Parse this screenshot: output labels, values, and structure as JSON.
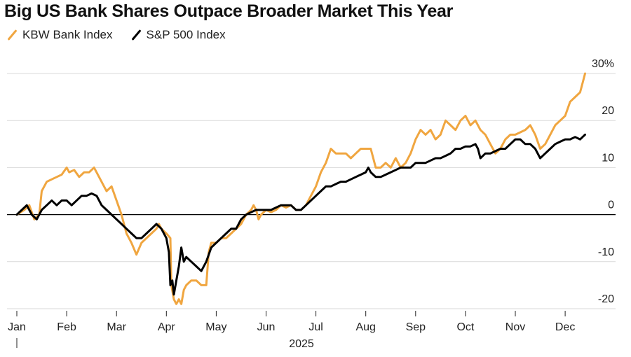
{
  "colors": {
    "kbw": "#f0a640",
    "sp500": "#000000",
    "grid": "#d9d9d9",
    "zero": "#000000"
  },
  "chart_data": {
    "type": "line",
    "title": "Big US Bank Shares Outpace Broader Market This Year",
    "xlabel": "2025",
    "ylabel": "",
    "ylim": [
      -20,
      30
    ],
    "xlim": [
      0,
      11.5
    ],
    "grid": true,
    "y_ticks": [
      {
        "value": 30,
        "label": "30%"
      },
      {
        "value": 20,
        "label": "20"
      },
      {
        "value": 10,
        "label": "10"
      },
      {
        "value": 0,
        "label": "0"
      },
      {
        "value": -10,
        "label": "-10"
      },
      {
        "value": -20,
        "label": "-20"
      }
    ],
    "x_ticks": [
      "Jan",
      "Feb",
      "Mar",
      "Apr",
      "May",
      "Jun",
      "Jul",
      "Aug",
      "Sep",
      "Oct",
      "Nov",
      "Dec"
    ],
    "legend": [
      "KBW Bank Index",
      "S&P 500 Index"
    ],
    "series": [
      {
        "name": "KBW Bank Index",
        "color": "#f0a640",
        "points": [
          [
            0,
            0
          ],
          [
            0.15,
            1
          ],
          [
            0.25,
            2
          ],
          [
            0.35,
            -1
          ],
          [
            0.45,
            0
          ],
          [
            0.5,
            5
          ],
          [
            0.6,
            7
          ],
          [
            0.7,
            7.5
          ],
          [
            0.8,
            8
          ],
          [
            0.9,
            8.5
          ],
          [
            1.0,
            10
          ],
          [
            1.05,
            9
          ],
          [
            1.15,
            9.5
          ],
          [
            1.25,
            8
          ],
          [
            1.35,
            9
          ],
          [
            1.45,
            9
          ],
          [
            1.55,
            10
          ],
          [
            1.65,
            8
          ],
          [
            1.75,
            6
          ],
          [
            1.8,
            5
          ],
          [
            1.9,
            6
          ],
          [
            2.0,
            3
          ],
          [
            2.1,
            0
          ],
          [
            2.2,
            -4
          ],
          [
            2.3,
            -6
          ],
          [
            2.4,
            -8.5
          ],
          [
            2.5,
            -6
          ],
          [
            2.6,
            -5
          ],
          [
            2.7,
            -4
          ],
          [
            2.8,
            -3
          ],
          [
            2.85,
            -2
          ],
          [
            2.9,
            -3
          ],
          [
            3.0,
            -4
          ],
          [
            3.08,
            -5
          ],
          [
            3.1,
            -15
          ],
          [
            3.15,
            -18
          ],
          [
            3.2,
            -19
          ],
          [
            3.25,
            -18
          ],
          [
            3.3,
            -19
          ],
          [
            3.35,
            -16
          ],
          [
            3.4,
            -15
          ],
          [
            3.5,
            -14
          ],
          [
            3.6,
            -14
          ],
          [
            3.7,
            -15
          ],
          [
            3.8,
            -15
          ],
          [
            3.85,
            -8
          ],
          [
            3.9,
            -6
          ],
          [
            4.0,
            -6
          ],
          [
            4.1,
            -5
          ],
          [
            4.2,
            -5
          ],
          [
            4.3,
            -4
          ],
          [
            4.4,
            -3
          ],
          [
            4.5,
            -2
          ],
          [
            4.6,
            0
          ],
          [
            4.7,
            1
          ],
          [
            4.75,
            2
          ],
          [
            4.8,
            1
          ],
          [
            4.85,
            -1
          ],
          [
            4.9,
            0
          ],
          [
            5.0,
            1
          ],
          [
            5.1,
            0.5
          ],
          [
            5.2,
            1
          ],
          [
            5.3,
            2
          ],
          [
            5.4,
            1.5
          ],
          [
            5.5,
            2
          ],
          [
            5.6,
            1
          ],
          [
            5.7,
            1
          ],
          [
            5.8,
            2
          ],
          [
            5.9,
            4
          ],
          [
            6.0,
            6
          ],
          [
            6.1,
            9
          ],
          [
            6.2,
            11
          ],
          [
            6.3,
            14
          ],
          [
            6.4,
            13
          ],
          [
            6.5,
            13
          ],
          [
            6.6,
            13
          ],
          [
            6.7,
            12
          ],
          [
            6.8,
            13
          ],
          [
            6.9,
            14
          ],
          [
            7.0,
            14
          ],
          [
            7.1,
            14
          ],
          [
            7.15,
            12
          ],
          [
            7.2,
            10
          ],
          [
            7.3,
            10
          ],
          [
            7.4,
            11
          ],
          [
            7.5,
            10
          ],
          [
            7.6,
            12
          ],
          [
            7.7,
            10
          ],
          [
            7.8,
            11
          ],
          [
            7.9,
            13
          ],
          [
            8.0,
            16
          ],
          [
            8.1,
            18
          ],
          [
            8.2,
            17
          ],
          [
            8.3,
            18
          ],
          [
            8.35,
            17
          ],
          [
            8.4,
            16
          ],
          [
            8.5,
            17
          ],
          [
            8.6,
            20
          ],
          [
            8.7,
            19
          ],
          [
            8.8,
            18
          ],
          [
            8.9,
            20
          ],
          [
            9.0,
            21
          ],
          [
            9.1,
            19
          ],
          [
            9.2,
            20
          ],
          [
            9.3,
            18
          ],
          [
            9.4,
            17
          ],
          [
            9.5,
            15
          ],
          [
            9.6,
            13
          ],
          [
            9.7,
            14
          ],
          [
            9.8,
            16
          ],
          [
            9.9,
            17
          ],
          [
            10.0,
            17
          ],
          [
            10.1,
            17.5
          ],
          [
            10.2,
            18
          ],
          [
            10.3,
            19
          ],
          [
            10.4,
            17
          ],
          [
            10.5,
            14
          ],
          [
            10.6,
            15
          ],
          [
            10.7,
            17
          ],
          [
            10.8,
            19
          ],
          [
            10.9,
            20
          ],
          [
            11.0,
            21
          ],
          [
            11.1,
            24
          ],
          [
            11.2,
            25
          ],
          [
            11.3,
            26
          ],
          [
            11.35,
            28
          ],
          [
            11.4,
            30
          ]
        ]
      },
      {
        "name": "S&P 500 Index",
        "color": "#000000",
        "points": [
          [
            0,
            0
          ],
          [
            0.1,
            1
          ],
          [
            0.2,
            2
          ],
          [
            0.3,
            0
          ],
          [
            0.4,
            -1
          ],
          [
            0.5,
            1
          ],
          [
            0.6,
            2
          ],
          [
            0.7,
            3
          ],
          [
            0.8,
            2
          ],
          [
            0.9,
            3
          ],
          [
            1.0,
            3
          ],
          [
            1.1,
            2
          ],
          [
            1.2,
            3
          ],
          [
            1.3,
            4
          ],
          [
            1.4,
            4
          ],
          [
            1.5,
            4.5
          ],
          [
            1.6,
            4
          ],
          [
            1.7,
            2
          ],
          [
            1.8,
            1
          ],
          [
            1.9,
            0
          ],
          [
            2.0,
            -1
          ],
          [
            2.1,
            -2
          ],
          [
            2.2,
            -3
          ],
          [
            2.3,
            -4
          ],
          [
            2.4,
            -5
          ],
          [
            2.5,
            -5
          ],
          [
            2.6,
            -4
          ],
          [
            2.7,
            -3
          ],
          [
            2.8,
            -2
          ],
          [
            2.9,
            -3
          ],
          [
            3.0,
            -5
          ],
          [
            3.05,
            -8
          ],
          [
            3.08,
            -15
          ],
          [
            3.12,
            -14
          ],
          [
            3.15,
            -17
          ],
          [
            3.2,
            -14
          ],
          [
            3.25,
            -11
          ],
          [
            3.3,
            -7
          ],
          [
            3.35,
            -10
          ],
          [
            3.4,
            -9
          ],
          [
            3.5,
            -10
          ],
          [
            3.6,
            -11
          ],
          [
            3.7,
            -12
          ],
          [
            3.8,
            -10
          ],
          [
            3.9,
            -7
          ],
          [
            4.0,
            -6
          ],
          [
            4.1,
            -5
          ],
          [
            4.2,
            -4
          ],
          [
            4.3,
            -3
          ],
          [
            4.4,
            -3
          ],
          [
            4.5,
            -1
          ],
          [
            4.6,
            0
          ],
          [
            4.7,
            0.5
          ],
          [
            4.8,
            1
          ],
          [
            4.9,
            1
          ],
          [
            5.0,
            1
          ],
          [
            5.1,
            1
          ],
          [
            5.2,
            1.5
          ],
          [
            5.3,
            2
          ],
          [
            5.4,
            2
          ],
          [
            5.5,
            2
          ],
          [
            5.6,
            1
          ],
          [
            5.7,
            1
          ],
          [
            5.8,
            2
          ],
          [
            5.9,
            3
          ],
          [
            6.0,
            4
          ],
          [
            6.1,
            5
          ],
          [
            6.2,
            6
          ],
          [
            6.3,
            6
          ],
          [
            6.4,
            6.5
          ],
          [
            6.5,
            7
          ],
          [
            6.6,
            7
          ],
          [
            6.7,
            7.5
          ],
          [
            6.8,
            8
          ],
          [
            6.9,
            8.5
          ],
          [
            7.0,
            9
          ],
          [
            7.05,
            10
          ],
          [
            7.1,
            9
          ],
          [
            7.2,
            8
          ],
          [
            7.3,
            8
          ],
          [
            7.4,
            8.5
          ],
          [
            7.5,
            9
          ],
          [
            7.6,
            9.5
          ],
          [
            7.7,
            10
          ],
          [
            7.8,
            10
          ],
          [
            7.9,
            10
          ],
          [
            8.0,
            11
          ],
          [
            8.1,
            11
          ],
          [
            8.2,
            11
          ],
          [
            8.3,
            11.5
          ],
          [
            8.4,
            12
          ],
          [
            8.5,
            12
          ],
          [
            8.6,
            12.5
          ],
          [
            8.7,
            13
          ],
          [
            8.8,
            14
          ],
          [
            8.9,
            14
          ],
          [
            9.0,
            14.5
          ],
          [
            9.1,
            14.5
          ],
          [
            9.2,
            15
          ],
          [
            9.25,
            14
          ],
          [
            9.3,
            12
          ],
          [
            9.4,
            13
          ],
          [
            9.5,
            13
          ],
          [
            9.6,
            13.5
          ],
          [
            9.7,
            14
          ],
          [
            9.8,
            14
          ],
          [
            9.9,
            15
          ],
          [
            10.0,
            16
          ],
          [
            10.1,
            16
          ],
          [
            10.2,
            15
          ],
          [
            10.3,
            15
          ],
          [
            10.4,
            14
          ],
          [
            10.5,
            12
          ],
          [
            10.6,
            13
          ],
          [
            10.7,
            14
          ],
          [
            10.8,
            15
          ],
          [
            10.9,
            15.5
          ],
          [
            11.0,
            16
          ],
          [
            11.1,
            16
          ],
          [
            11.2,
            16.5
          ],
          [
            11.3,
            16
          ],
          [
            11.35,
            16.5
          ],
          [
            11.4,
            17
          ]
        ]
      }
    ]
  }
}
